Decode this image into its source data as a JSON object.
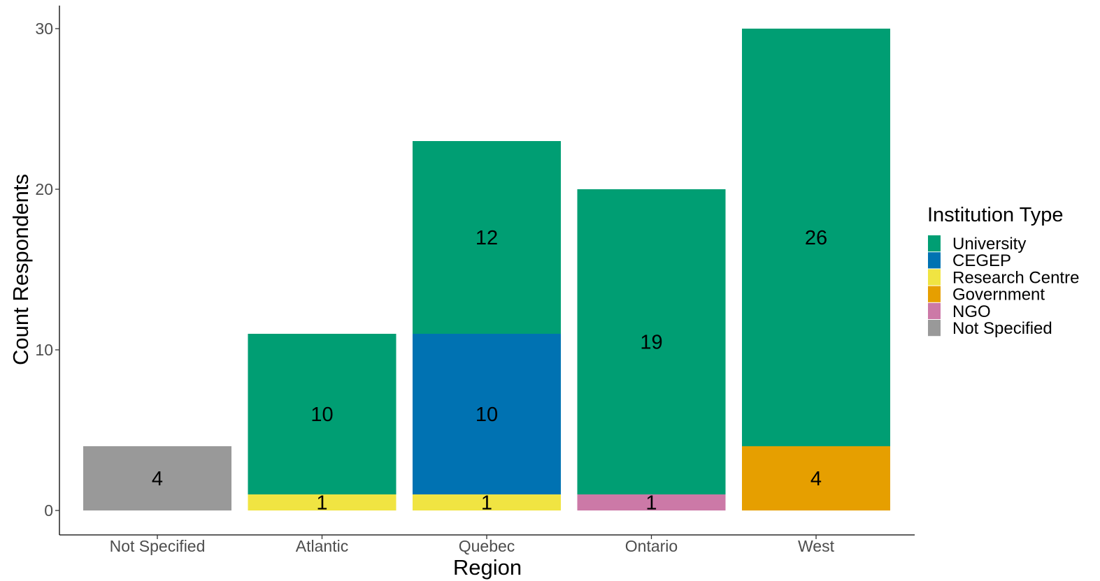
{
  "chart_data": {
    "type": "bar",
    "stacked": true,
    "title": "",
    "xlabel": "Region",
    "ylabel": "Count Respondents",
    "ylim": [
      0,
      31.5
    ],
    "yticks": [
      0,
      10,
      20,
      30
    ],
    "categories": [
      "Not Specified",
      "Atlantic",
      "Quebec",
      "Ontario",
      "West"
    ],
    "series": [
      {
        "name": "University",
        "color": "#009E73",
        "values": [
          0,
          10,
          12,
          19,
          26
        ]
      },
      {
        "name": "CEGEP",
        "color": "#0072B2",
        "values": [
          0,
          0,
          10,
          0,
          0
        ]
      },
      {
        "name": "Research Centre",
        "color": "#F0E442",
        "values": [
          0,
          1,
          1,
          0,
          0
        ]
      },
      {
        "name": "Government",
        "color": "#E69F00",
        "values": [
          0,
          0,
          0,
          0,
          4
        ]
      },
      {
        "name": "NGO",
        "color": "#CC79A7",
        "values": [
          0,
          0,
          0,
          1,
          0
        ]
      },
      {
        "name": "Not Specified",
        "color": "#999999",
        "values": [
          4,
          0,
          0,
          0,
          0
        ]
      }
    ],
    "stack_order_bottom_to_top": [
      "Not Specified",
      "NGO",
      "Government",
      "Research Centre",
      "CEGEP",
      "University"
    ],
    "legend": {
      "title": "Institution Type",
      "position": "right"
    },
    "grid": false
  }
}
